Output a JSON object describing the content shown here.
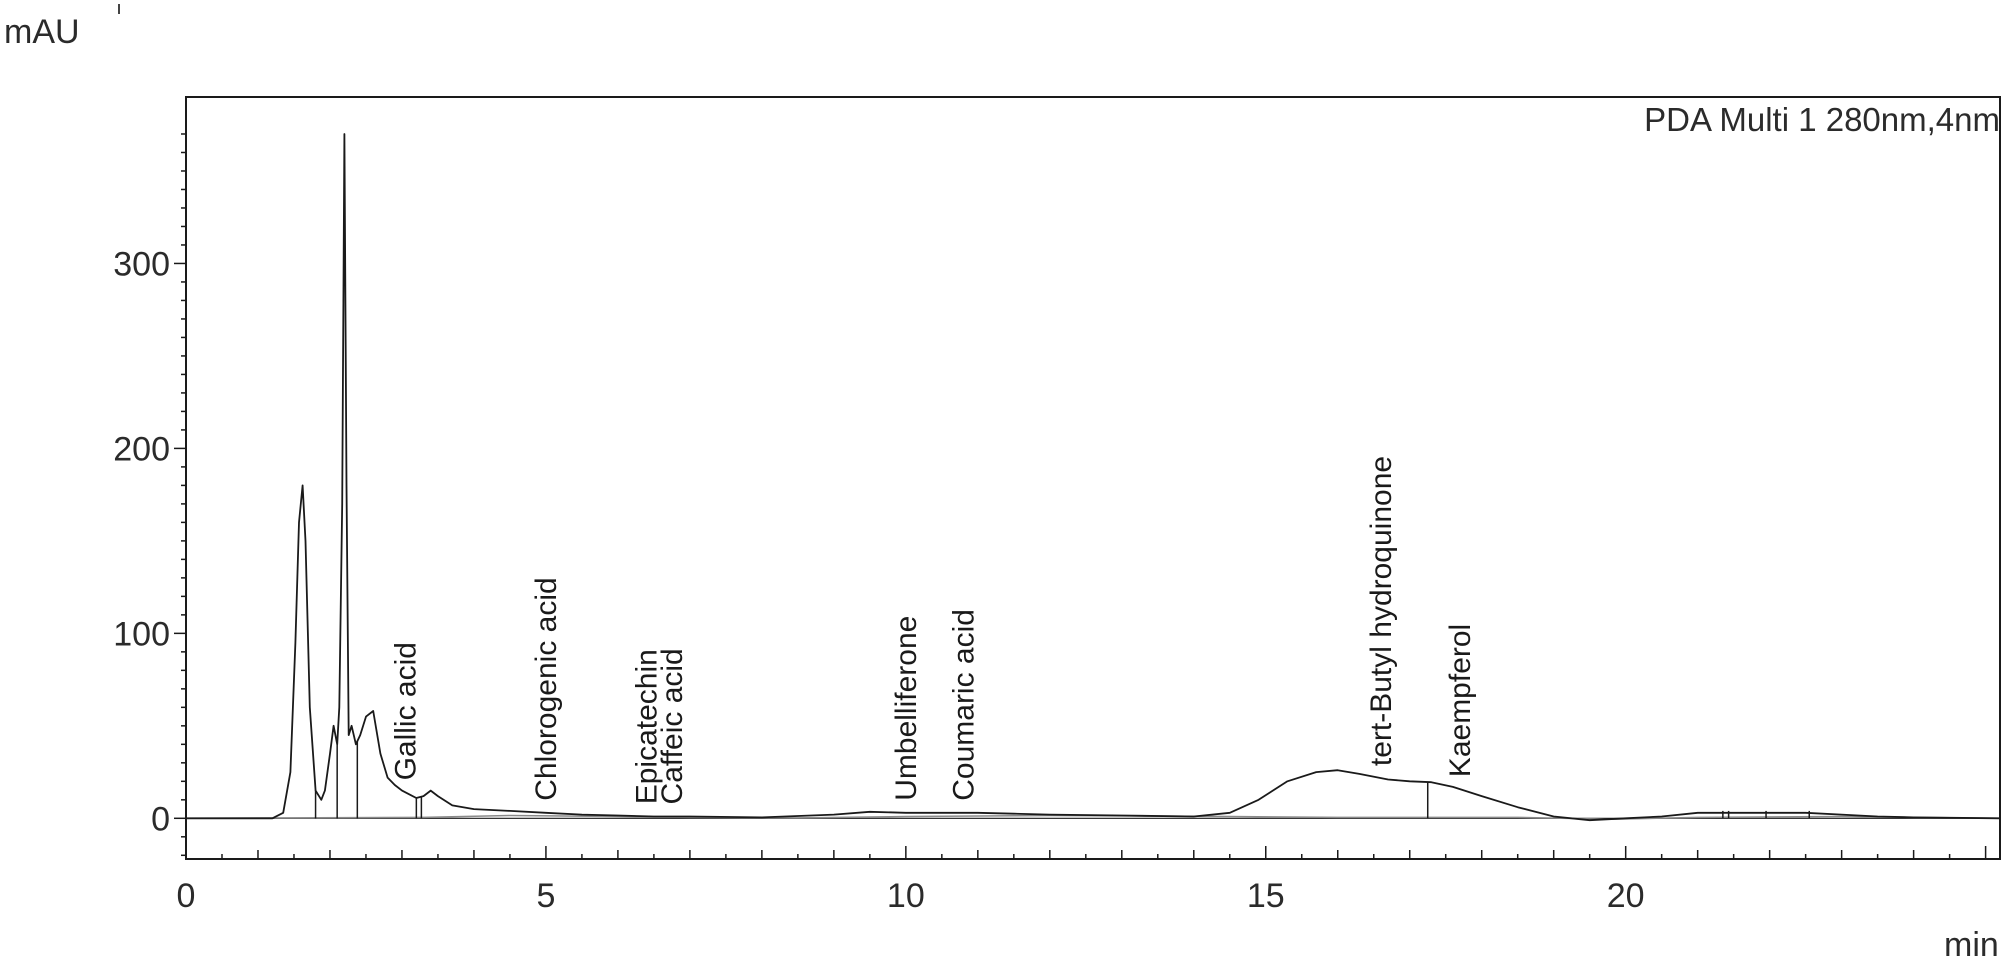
{
  "chart_data": {
    "type": "line",
    "ylabel": "mAU",
    "xlabel": "min",
    "annotation": "PDA Multi 1 280nm,4nm",
    "xlim": [
      0,
      25.2
    ],
    "ylim": [
      -22,
      390
    ],
    "x_ticks": [
      0,
      5,
      10,
      15,
      20
    ],
    "x_tick_labels": [
      "0",
      "5",
      "10",
      "15",
      "20"
    ],
    "y_ticks": [
      0,
      100,
      200,
      300
    ],
    "y_tick_labels": [
      "0",
      "100",
      "200",
      "300"
    ],
    "grid": false,
    "series": [
      {
        "x": [
          0,
          1.2,
          1.35,
          1.45,
          1.52,
          1.57,
          1.62,
          1.66,
          1.72,
          1.8,
          1.88,
          1.93,
          2.0,
          2.05,
          2.1,
          2.13,
          2.17,
          2.2,
          2.23,
          2.26,
          2.3,
          2.36,
          2.42,
          2.5,
          2.6,
          2.7,
          2.8,
          2.9,
          3.0,
          3.1,
          3.2,
          3.3,
          3.4,
          3.5,
          3.7,
          4.0,
          4.5,
          5.0,
          5.5,
          6.0,
          6.5,
          7.0,
          8.0,
          9.0,
          9.5,
          10.0,
          10.5,
          11.0,
          11.5,
          12.0,
          13.0,
          14.0,
          14.5,
          14.9,
          15.3,
          15.7,
          16.0,
          16.3,
          16.7,
          17.0,
          17.3,
          17.6,
          18.0,
          18.5,
          19.0,
          19.5,
          20.0,
          20.5,
          21.0,
          21.5,
          22.0,
          22.5,
          23.0,
          23.5,
          24.0,
          25.2
        ],
        "y": [
          0,
          0,
          3,
          25,
          95,
          160,
          180,
          150,
          60,
          15,
          10,
          15,
          35,
          50,
          40,
          60,
          170,
          370,
          180,
          45,
          50,
          40,
          45,
          55,
          58,
          35,
          22,
          18,
          15,
          13,
          11,
          12,
          15,
          12,
          7,
          5,
          4,
          3,
          2,
          1.5,
          1,
          1,
          0.5,
          2,
          3.5,
          3,
          3,
          3,
          2.5,
          2,
          1.5,
          1,
          3,
          10,
          20,
          25,
          26,
          24,
          21,
          20,
          19.5,
          17,
          12,
          6,
          1,
          -1,
          0,
          1,
          3,
          3,
          3,
          3,
          2,
          1,
          0.5,
          0
        ]
      }
    ],
    "baseline": {
      "x": [
        0,
        3.3,
        4.5,
        6.0,
        7.0,
        8.5,
        10.0,
        12.0,
        14.5,
        16.0,
        17.3,
        18.5,
        19.8,
        21.0,
        23.0,
        24.0,
        25.2
      ],
      "y": [
        0,
        0.5,
        1.5,
        1.0,
        0.5,
        0.2,
        1.0,
        1.5,
        1.0,
        0.5,
        0.5,
        0.5,
        -0.5,
        0.5,
        1.0,
        0.5,
        0
      ]
    },
    "peak_markers": [
      1.8,
      2.1,
      2.38,
      3.2,
      3.27,
      17.25,
      21.35,
      21.43,
      21.95,
      22.55
    ],
    "peaks": [
      {
        "name": "Gallic acid",
        "rt": 3.05
      },
      {
        "name": "Chlorogenic acid",
        "rt": 5.0
      },
      {
        "name": "Epicatechin",
        "rt": 6.4
      },
      {
        "name": "Caffeic acid",
        "rt": 6.75
      },
      {
        "name": "Umbelliferone",
        "rt": 10.0
      },
      {
        "name": "Coumaric acid",
        "rt": 10.8
      },
      {
        "name": "tert-Butyl hydroquinone",
        "rt": 16.6
      },
      {
        "name": "Kaempferol",
        "rt": 17.7
      }
    ]
  }
}
